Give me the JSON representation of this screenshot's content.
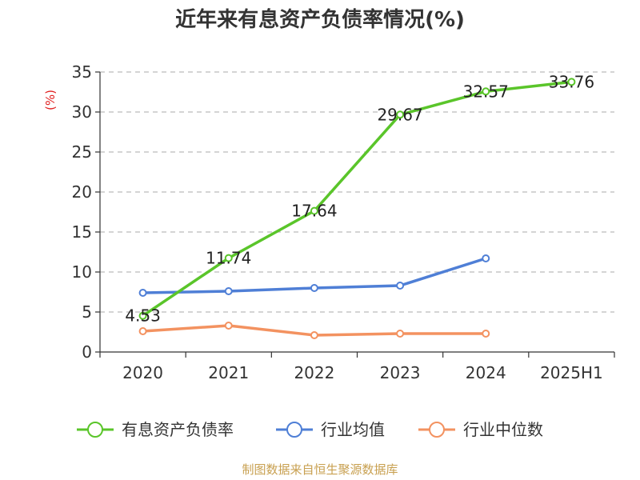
{
  "title": "近年来有息资产负债率情况(%)",
  "unit_label": "(%)",
  "source": "制图数据来自恒生聚源数据库",
  "colors": {
    "series_1": "#5ac52a",
    "series_2": "#4f7fd6",
    "series_3": "#f39260",
    "grid": "#bbbbbb",
    "axis": "#333333",
    "unit": "#e02020",
    "source": "#c8a050"
  },
  "chart_data": {
    "type": "line",
    "categories": [
      "2020",
      "2021",
      "2022",
      "2023",
      "2024",
      "2025H1"
    ],
    "ylim": [
      0,
      35
    ],
    "yticks": [
      0,
      5,
      10,
      15,
      20,
      25,
      30,
      35
    ],
    "ylabel": "(%)",
    "grid": true,
    "legend_position": "bottom",
    "series": [
      {
        "name": "有息资产负债率",
        "values": [
          4.53,
          11.74,
          17.64,
          29.67,
          32.57,
          33.76
        ],
        "labels": [
          "4.53",
          "11.74",
          "17.64",
          "29.67",
          "32.57",
          "33.76"
        ],
        "color": "#5ac52a"
      },
      {
        "name": "行业均值",
        "values": [
          7.4,
          7.6,
          8.0,
          8.3,
          11.7,
          null
        ],
        "color": "#4f7fd6"
      },
      {
        "name": "行业中位数",
        "values": [
          2.6,
          3.3,
          2.1,
          2.3,
          2.3,
          null
        ],
        "color": "#f39260"
      }
    ]
  }
}
